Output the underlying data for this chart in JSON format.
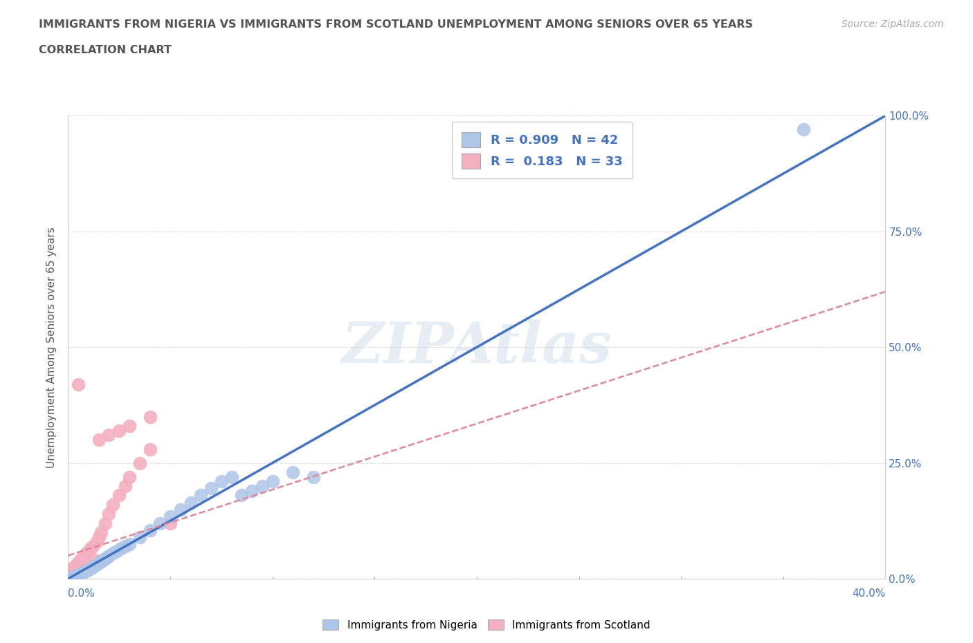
{
  "title_line1": "IMMIGRANTS FROM NIGERIA VS IMMIGRANTS FROM SCOTLAND UNEMPLOYMENT AMONG SENIORS OVER 65 YEARS",
  "title_line2": "CORRELATION CHART",
  "source_text": "Source: ZipAtlas.com",
  "ylabel": "Unemployment Among Seniors over 65 years",
  "watermark": "ZIPAtlas",
  "legend_label_nigeria": "R = 0.909   N = 42",
  "legend_label_scotland": "R =  0.183   N = 33",
  "bottom_legend_nigeria": "Immigrants from Nigeria",
  "bottom_legend_scotland": "Immigrants from Scotland",
  "nigeria_color": "#aec6e8",
  "scotland_color": "#f4b0c0",
  "nigeria_line_color": "#4472c4",
  "scotland_line_color": "#e08898",
  "y_tick_vals": [
    0,
    25,
    50,
    75,
    100
  ],
  "y_tick_labels": [
    "0.0%",
    "25.0%",
    "50.0%",
    "75.0%",
    "100.0%"
  ],
  "xlim": [
    0,
    40
  ],
  "ylim": [
    0,
    100
  ],
  "nigeria_x": [
    0.1,
    0.2,
    0.3,
    0.4,
    0.5,
    0.6,
    0.7,
    0.8,
    0.9,
    1.0,
    1.1,
    1.2,
    1.3,
    1.4,
    1.5,
    1.6,
    1.7,
    1.8,
    1.9,
    2.0,
    2.2,
    2.4,
    2.6,
    2.8,
    3.0,
    3.5,
    4.0,
    4.5,
    5.0,
    5.5,
    6.0,
    6.5,
    7.0,
    7.5,
    8.0,
    8.5,
    9.0,
    9.5,
    10.0,
    11.0,
    12.0,
    36.0
  ],
  "nigeria_y": [
    0.2,
    0.3,
    0.5,
    0.6,
    0.8,
    1.0,
    1.2,
    1.5,
    1.8,
    2.0,
    2.3,
    2.6,
    2.9,
    3.2,
    3.5,
    3.8,
    4.1,
    4.4,
    4.7,
    5.0,
    5.5,
    6.0,
    6.5,
    7.0,
    7.5,
    9.0,
    10.5,
    12.0,
    13.5,
    15.0,
    16.5,
    18.0,
    19.5,
    21.0,
    22.0,
    18.0,
    19.0,
    20.0,
    21.0,
    23.0,
    22.0,
    97.0
  ],
  "scotland_x": [
    0.1,
    0.15,
    0.2,
    0.25,
    0.3,
    0.4,
    0.5,
    0.6,
    0.7,
    0.8,
    0.9,
    1.0,
    1.1,
    1.2,
    1.3,
    1.4,
    1.5,
    1.6,
    1.8,
    2.0,
    2.2,
    2.5,
    2.8,
    3.0,
    3.5,
    4.0,
    5.0,
    0.5,
    1.5,
    2.0,
    2.5,
    3.0,
    4.0
  ],
  "scotland_y": [
    0.5,
    1.0,
    1.5,
    2.0,
    2.5,
    3.0,
    3.5,
    4.0,
    4.5,
    5.0,
    5.5,
    6.0,
    6.5,
    7.0,
    4.0,
    8.0,
    9.0,
    10.0,
    12.0,
    14.0,
    16.0,
    18.0,
    20.0,
    22.0,
    25.0,
    28.0,
    12.0,
    42.0,
    30.0,
    31.0,
    32.0,
    33.0,
    35.0
  ],
  "nig_line_x0": 0,
  "nig_line_y0": 0,
  "nig_line_x1": 40,
  "nig_line_y1": 100,
  "scot_line_x0": 0,
  "scot_line_y0": 5,
  "scot_line_x1": 40,
  "scot_line_y1": 62
}
